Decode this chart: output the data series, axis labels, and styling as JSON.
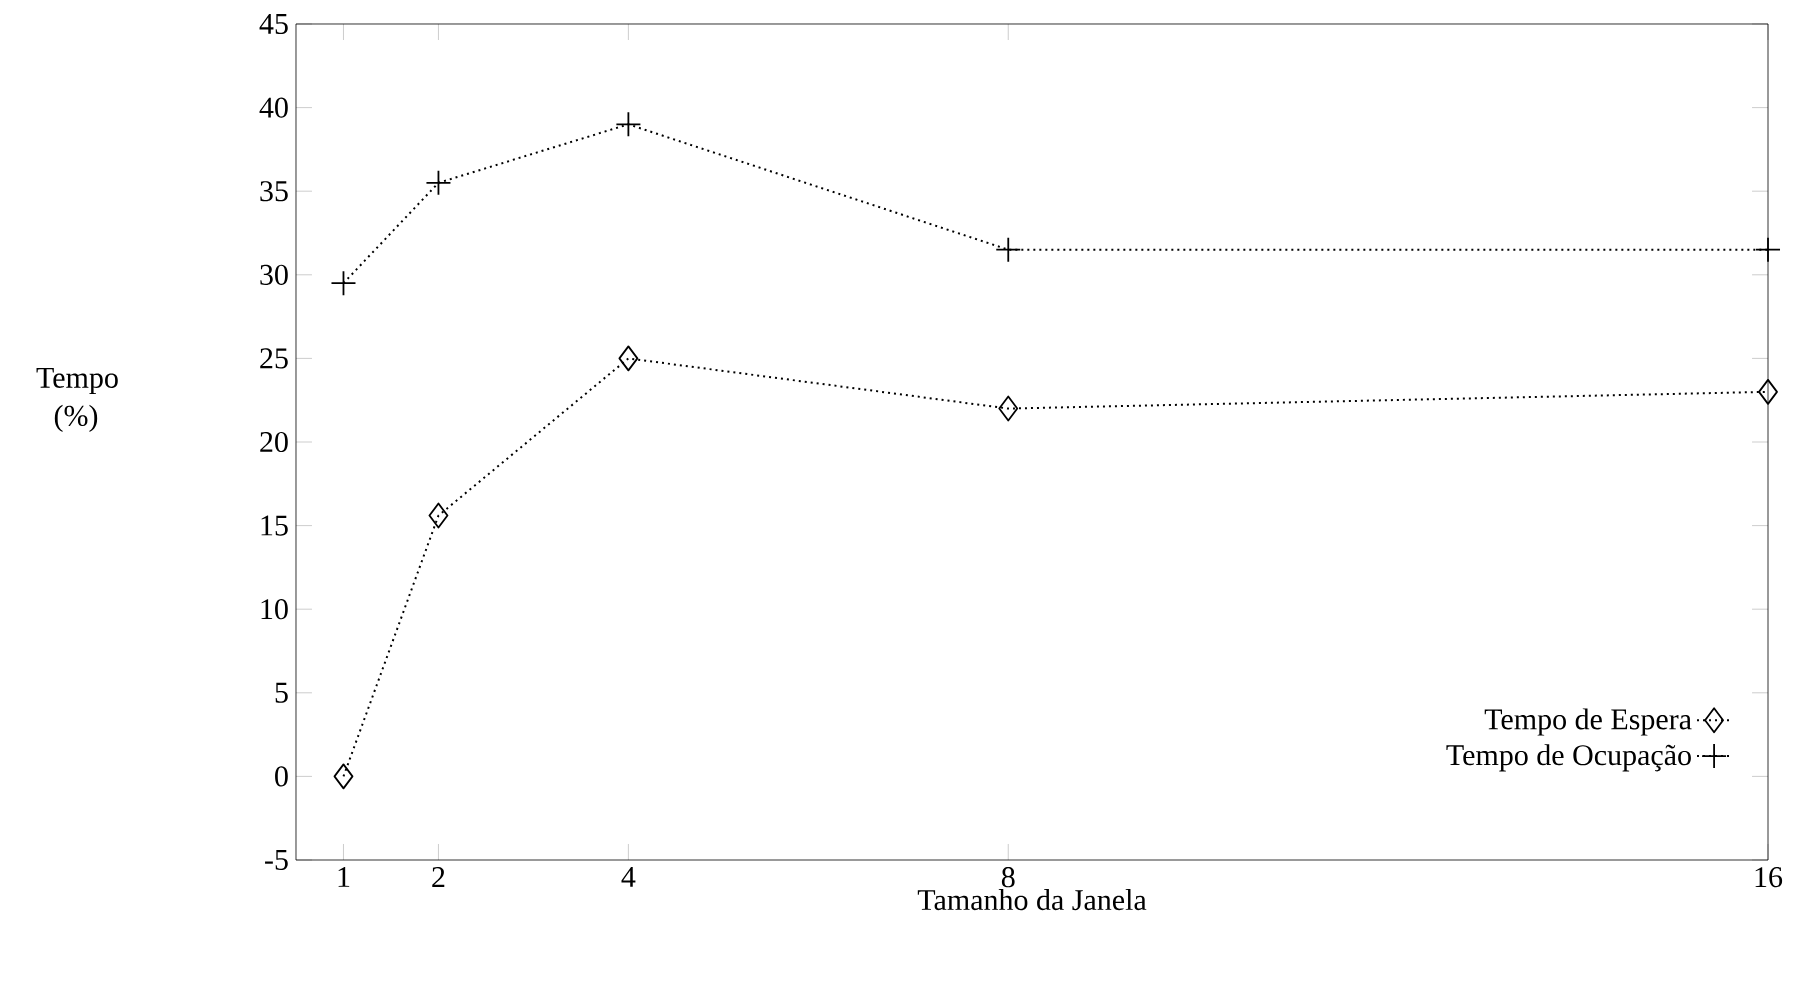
{
  "chart_data": {
    "type": "line",
    "xlabel": "Tamanho da Janela",
    "ylabel": "Tempo (%)",
    "x": [
      1,
      2,
      4,
      8,
      16
    ],
    "series": [
      {
        "name": "Tempo de Espera",
        "color": "#000000",
        "marker": "diamond",
        "values": [
          0,
          15.6,
          25,
          22,
          23
        ]
      },
      {
        "name": "Tempo de Ocupação",
        "color": "#000000",
        "marker": "cross",
        "values": [
          29.5,
          35.5,
          39,
          31.5,
          31.5
        ]
      }
    ],
    "xlim": [
      0.5,
      16
    ],
    "ylim": [
      -5,
      45
    ],
    "xticks": [
      1,
      2,
      4,
      8,
      16
    ],
    "yticks": [
      -5,
      0,
      5,
      10,
      15,
      20,
      25,
      30,
      35,
      40,
      45
    ],
    "legend": "bottom right",
    "line_style": "dotted",
    "grid": false
  }
}
